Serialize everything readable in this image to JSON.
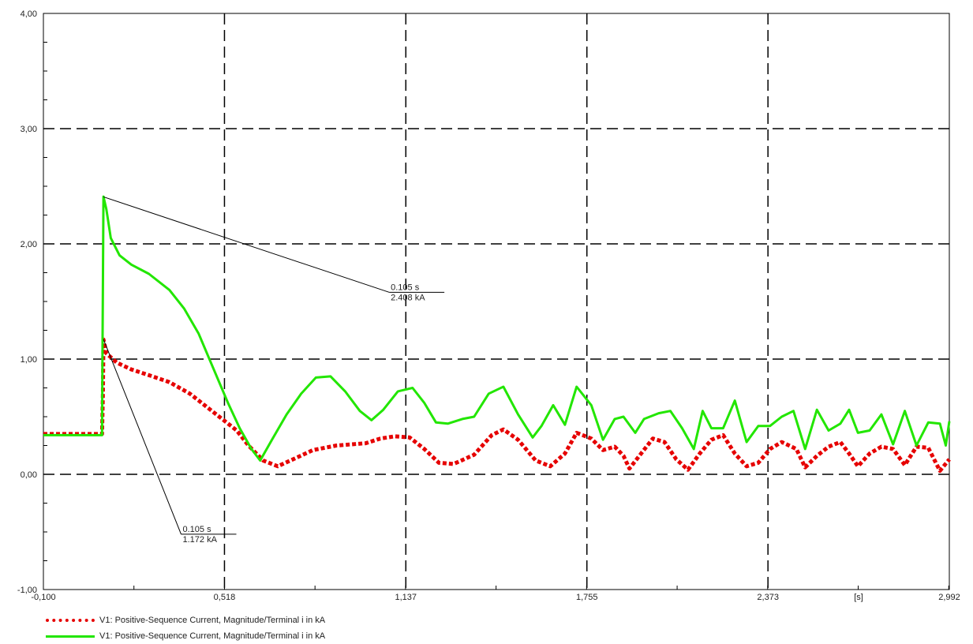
{
  "chart_data": {
    "type": "line",
    "xlabel": "",
    "x_unit_label": "[s]",
    "ylabel": "",
    "xlim": [
      -0.1,
      2.992
    ],
    "ylim": [
      -1.0,
      4.0
    ],
    "x_ticks": [
      "-0,100",
      "0,518",
      "1,137",
      "1,755",
      "2,373",
      "2,992"
    ],
    "x_tick_values": [
      -0.1,
      0.518,
      1.137,
      1.755,
      2.373,
      2.992
    ],
    "y_ticks": [
      "-1,00",
      "0,00",
      "1,00",
      "2,00",
      "3,00",
      "4,00"
    ],
    "y_tick_values": [
      -1,
      0,
      1,
      2,
      3,
      4
    ],
    "grid": "dashed",
    "legend_position": "bottom-left",
    "series": [
      {
        "name": "V1: Positive-Sequence Current, Magnitude/Terminal i in kA",
        "style": "dotted",
        "color": "#e60000",
        "points": [
          [
            -0.1,
            0.35
          ],
          [
            0.1,
            0.35
          ],
          [
            0.103,
            0.7
          ],
          [
            0.105,
            1.17
          ],
          [
            0.115,
            1.05
          ],
          [
            0.15,
            0.97
          ],
          [
            0.2,
            0.91
          ],
          [
            0.26,
            0.86
          ],
          [
            0.33,
            0.8
          ],
          [
            0.4,
            0.7
          ],
          [
            0.46,
            0.58
          ],
          [
            0.51,
            0.48
          ],
          [
            0.56,
            0.38
          ],
          [
            0.6,
            0.25
          ],
          [
            0.65,
            0.12
          ],
          [
            0.7,
            0.07
          ],
          [
            0.76,
            0.14
          ],
          [
            0.82,
            0.21
          ],
          [
            0.9,
            0.25
          ],
          [
            1.0,
            0.27
          ],
          [
            1.05,
            0.31
          ],
          [
            1.1,
            0.33
          ],
          [
            1.15,
            0.32
          ],
          [
            1.2,
            0.22
          ],
          [
            1.25,
            0.1
          ],
          [
            1.3,
            0.09
          ],
          [
            1.37,
            0.17
          ],
          [
            1.43,
            0.34
          ],
          [
            1.47,
            0.39
          ],
          [
            1.52,
            0.3
          ],
          [
            1.58,
            0.12
          ],
          [
            1.63,
            0.07
          ],
          [
            1.68,
            0.18
          ],
          [
            1.72,
            0.36
          ],
          [
            1.77,
            0.31
          ],
          [
            1.81,
            0.21
          ],
          [
            1.85,
            0.24
          ],
          [
            1.88,
            0.16
          ],
          [
            1.9,
            0.05
          ],
          [
            1.94,
            0.18
          ],
          [
            1.98,
            0.31
          ],
          [
            2.02,
            0.28
          ],
          [
            2.06,
            0.13
          ],
          [
            2.1,
            0.04
          ],
          [
            2.14,
            0.18
          ],
          [
            2.18,
            0.3
          ],
          [
            2.22,
            0.34
          ],
          [
            2.26,
            0.18
          ],
          [
            2.3,
            0.07
          ],
          [
            2.34,
            0.1
          ],
          [
            2.38,
            0.22
          ],
          [
            2.42,
            0.28
          ],
          [
            2.47,
            0.22
          ],
          [
            2.5,
            0.06
          ],
          [
            2.54,
            0.16
          ],
          [
            2.58,
            0.24
          ],
          [
            2.62,
            0.28
          ],
          [
            2.65,
            0.18
          ],
          [
            2.68,
            0.07
          ],
          [
            2.72,
            0.18
          ],
          [
            2.76,
            0.24
          ],
          [
            2.8,
            0.22
          ],
          [
            2.84,
            0.08
          ],
          [
            2.88,
            0.24
          ],
          [
            2.92,
            0.23
          ],
          [
            2.96,
            0.03
          ],
          [
            2.992,
            0.13
          ]
        ]
      },
      {
        "name": "V1: Positive-Sequence Current, Magnitude/Terminal i in kA",
        "style": "solid",
        "color": "#22e600",
        "points": [
          [
            -0.1,
            0.34
          ],
          [
            0.1,
            0.34
          ],
          [
            0.102,
            1.2
          ],
          [
            0.105,
            2.41
          ],
          [
            0.115,
            2.3
          ],
          [
            0.13,
            2.05
          ],
          [
            0.16,
            1.9
          ],
          [
            0.2,
            1.82
          ],
          [
            0.26,
            1.74
          ],
          [
            0.33,
            1.6
          ],
          [
            0.38,
            1.44
          ],
          [
            0.43,
            1.22
          ],
          [
            0.48,
            0.92
          ],
          [
            0.53,
            0.62
          ],
          [
            0.57,
            0.4
          ],
          [
            0.61,
            0.22
          ],
          [
            0.64,
            0.12
          ],
          [
            0.68,
            0.3
          ],
          [
            0.73,
            0.52
          ],
          [
            0.78,
            0.7
          ],
          [
            0.83,
            0.84
          ],
          [
            0.88,
            0.85
          ],
          [
            0.93,
            0.72
          ],
          [
            0.98,
            0.55
          ],
          [
            1.02,
            0.47
          ],
          [
            1.06,
            0.56
          ],
          [
            1.11,
            0.72
          ],
          [
            1.16,
            0.75
          ],
          [
            1.2,
            0.62
          ],
          [
            1.24,
            0.45
          ],
          [
            1.28,
            0.44
          ],
          [
            1.33,
            0.48
          ],
          [
            1.37,
            0.5
          ],
          [
            1.42,
            0.7
          ],
          [
            1.47,
            0.76
          ],
          [
            1.52,
            0.52
          ],
          [
            1.57,
            0.32
          ],
          [
            1.6,
            0.42
          ],
          [
            1.64,
            0.6
          ],
          [
            1.68,
            0.43
          ],
          [
            1.72,
            0.76
          ],
          [
            1.77,
            0.6
          ],
          [
            1.81,
            0.3
          ],
          [
            1.85,
            0.48
          ],
          [
            1.88,
            0.5
          ],
          [
            1.92,
            0.36
          ],
          [
            1.95,
            0.48
          ],
          [
            2.0,
            0.53
          ],
          [
            2.04,
            0.55
          ],
          [
            2.08,
            0.4
          ],
          [
            2.12,
            0.22
          ],
          [
            2.15,
            0.55
          ],
          [
            2.18,
            0.4
          ],
          [
            2.22,
            0.4
          ],
          [
            2.26,
            0.64
          ],
          [
            2.3,
            0.28
          ],
          [
            2.34,
            0.42
          ],
          [
            2.38,
            0.42
          ],
          [
            2.42,
            0.5
          ],
          [
            2.46,
            0.55
          ],
          [
            2.5,
            0.22
          ],
          [
            2.54,
            0.56
          ],
          [
            2.58,
            0.38
          ],
          [
            2.62,
            0.44
          ],
          [
            2.65,
            0.56
          ],
          [
            2.68,
            0.36
          ],
          [
            2.72,
            0.38
          ],
          [
            2.76,
            0.52
          ],
          [
            2.8,
            0.26
          ],
          [
            2.84,
            0.55
          ],
          [
            2.88,
            0.25
          ],
          [
            2.92,
            0.45
          ],
          [
            2.96,
            0.44
          ],
          [
            2.98,
            0.25
          ],
          [
            2.992,
            0.46
          ]
        ]
      }
    ],
    "annotations": [
      {
        "x": 0.105,
        "y": 2.408,
        "time_label": "0.105 s",
        "value_label": "2.408 kA",
        "label_x": 1.08,
        "label_y": 1.58
      },
      {
        "x": 0.105,
        "y": 1.172,
        "time_label": "0.105 s",
        "value_label": "1.172 kA",
        "label_x": 0.37,
        "label_y": -0.52
      }
    ]
  },
  "legend": {
    "items": [
      {
        "label": "V1: Positive-Sequence Current, Magnitude/Terminal i in kA"
      },
      {
        "label": "V1: Positive-Sequence Current, Magnitude/Terminal i in kA"
      }
    ]
  }
}
